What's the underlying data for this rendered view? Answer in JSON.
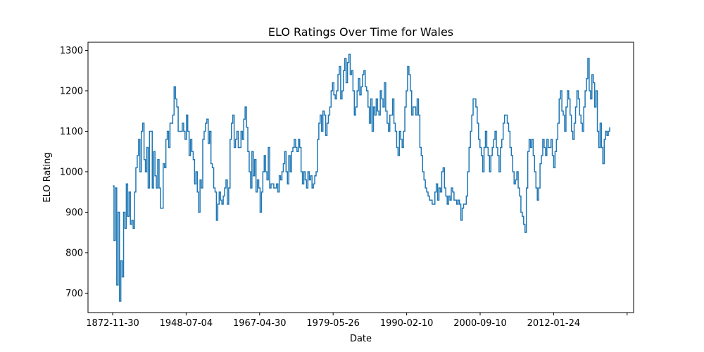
{
  "chart_data": {
    "type": "line",
    "title": "ELO Ratings Over Time for Wales",
    "xlabel": "Date",
    "ylabel": "ELO Rating",
    "x_tick_labels": [
      "1872-11-30",
      "1948-07-04",
      "1967-04-30",
      "1979-05-26",
      "1990-02-10",
      "2000-09-10",
      "2012-01-24",
      ""
    ],
    "ylim": [
      652,
      1320
    ],
    "y_ticks": [
      700,
      800,
      900,
      1000,
      1100,
      1200,
      1300
    ],
    "grid": false,
    "legend": "none",
    "series_color": "#1f77b4",
    "series": [
      {
        "values": [
          965,
          830,
          960,
          720,
          900,
          680,
          780,
          740,
          900,
          860,
          970,
          890,
          950,
          870,
          880,
          860,
          950,
          1010,
          1040,
          1080,
          1000,
          1100,
          1120,
          1030,
          1000,
          1060,
          960,
          1100,
          1100,
          960,
          1050,
          990,
          960,
          1030,
          960,
          910,
          910,
          1020,
          1010,
          1080,
          1100,
          1060,
          1120,
          1120,
          1140,
          1210,
          1180,
          1160,
          1100,
          1100,
          1100,
          1120,
          1100,
          1080,
          1140,
          1100,
          1040,
          1080,
          1050,
          1030,
          970,
          1000,
          950,
          900,
          980,
          960,
          1080,
          1100,
          1120,
          1130,
          1070,
          1100,
          1020,
          1010,
          960,
          950,
          880,
          920,
          950,
          930,
          920,
          940,
          960,
          980,
          920,
          960,
          1080,
          1120,
          1140,
          1060,
          1080,
          1100,
          1060,
          1060,
          1100,
          1080,
          1130,
          1160,
          1110,
          1050,
          1000,
          960,
          1050,
          990,
          1030,
          950,
          980,
          960,
          900,
          950,
          1000,
          1040,
          1000,
          980,
          1060,
          960,
          970,
          970,
          960,
          960,
          970,
          950,
          990,
          980,
          1000,
          1020,
          1050,
          1000,
          970,
          1040,
          1000,
          1050,
          1060,
          1080,
          1060,
          1050,
          1080,
          1060,
          1000,
          970,
          1000,
          980,
          960,
          1000,
          980,
          990,
          960,
          970,
          990,
          1000,
          1080,
          1120,
          1140,
          1100,
          1150,
          1140,
          1090,
          1120,
          1140,
          1160,
          1200,
          1220,
          1190,
          1180,
          1200,
          1240,
          1260,
          1180,
          1200,
          1250,
          1280,
          1220,
          1270,
          1290,
          1240,
          1250,
          1200,
          1140,
          1160,
          1200,
          1230,
          1190,
          1210,
          1240,
          1250,
          1210,
          1200,
          1160,
          1120,
          1180,
          1100,
          1160,
          1140,
          1180,
          1150,
          1140,
          1200,
          1180,
          1160,
          1220,
          1150,
          1120,
          1100,
          1140,
          1140,
          1180,
          1120,
          1100,
          1060,
          1040,
          1100,
          1080,
          1060,
          1100,
          1160,
          1200,
          1260,
          1240,
          1200,
          1140,
          1160,
          1160,
          1140,
          1180,
          1140,
          1060,
          1040,
          1000,
          980,
          960,
          950,
          940,
          930,
          930,
          920,
          920,
          950,
          970,
          930,
          960,
          950,
          1000,
          1010,
          960,
          940,
          920,
          940,
          930,
          960,
          950,
          930,
          930,
          920,
          930,
          920,
          880,
          910,
          920,
          920,
          940,
          1000,
          1060,
          1100,
          1140,
          1180,
          1180,
          1160,
          1120,
          1080,
          1060,
          1040,
          1000,
          1060,
          1100,
          1060,
          1040,
          1000,
          1040,
          1060,
          1080,
          1100,
          1060,
          1040,
          1000,
          1060,
          1080,
          1120,
          1140,
          1140,
          1120,
          1100,
          1060,
          1040,
          1000,
          970,
          980,
          1000,
          960,
          940,
          900,
          890,
          870,
          850,
          960,
          1050,
          1080,
          1060,
          1080,
          1040,
          1000,
          960,
          930,
          960,
          1020,
          1040,
          1080,
          1060,
          1040,
          1080,
          1060,
          1060,
          1080,
          1040,
          1010,
          1050,
          1080,
          1120,
          1180,
          1200,
          1150,
          1140,
          1100,
          1160,
          1200,
          1180,
          1140,
          1100,
          1080,
          1120,
          1160,
          1200,
          1180,
          1140,
          1120,
          1100,
          1160,
          1200,
          1230,
          1280,
          1200,
          1180,
          1240,
          1220,
          1160,
          1200,
          1100,
          1060,
          1120,
          1060,
          1020,
          1080,
          1100,
          1090,
          1100,
          1110
        ]
      }
    ]
  }
}
